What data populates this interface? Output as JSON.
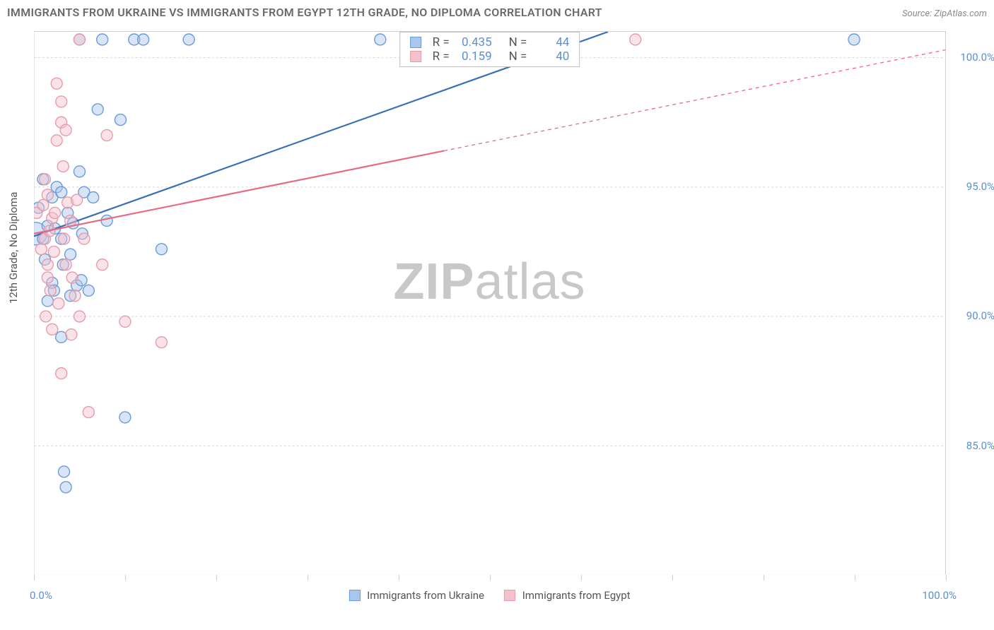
{
  "title": "IMMIGRANTS FROM UKRAINE VS IMMIGRANTS FROM EGYPT 12TH GRADE, NO DIPLOMA CORRELATION CHART",
  "source": "Source: ZipAtlas.com",
  "ylabel": "12th Grade, No Diploma",
  "watermark_bold": "ZIP",
  "watermark_light": "atlas",
  "chart": {
    "type": "scatter",
    "background_color": "#ffffff",
    "grid_color": "#d5d5d5",
    "axis_color": "#cfcfcf",
    "text_color": "#555555",
    "value_color": "#5b8fd6",
    "xlim": [
      0,
      100
    ],
    "ylim": [
      80,
      101
    ],
    "ytick_values": [
      85.0,
      90.0,
      95.0,
      100.0
    ],
    "ytick_labels": [
      "85.0%",
      "90.0%",
      "95.0%",
      "100.0%"
    ],
    "xtick_positions": [
      0,
      10,
      20,
      30,
      40,
      50,
      60,
      70,
      80,
      90,
      100
    ],
    "xtick_label_0": "0.0%",
    "xtick_label_100": "100.0%",
    "point_radius": 8,
    "point_opacity": 0.45,
    "line_width": 2.2,
    "series": [
      {
        "name": "Immigrants from Ukraine",
        "color_fill": "#a9c6ec",
        "color_stroke": "#6b9bd8",
        "line_color": "#3b6fb5",
        "R": "0.435",
        "N": "44",
        "trend_solid": {
          "x1": 0,
          "y1": 93.1,
          "x2": 63,
          "y2": 101
        },
        "points": [
          {
            "x": 0.2,
            "y": 93.2,
            "r": 16
          },
          {
            "x": 0.5,
            "y": 94.2
          },
          {
            "x": 1,
            "y": 93.0
          },
          {
            "x": 1,
            "y": 95.3
          },
          {
            "x": 1.2,
            "y": 92.2
          },
          {
            "x": 1.5,
            "y": 93.5
          },
          {
            "x": 1.5,
            "y": 90.6
          },
          {
            "x": 2,
            "y": 91.3
          },
          {
            "x": 2,
            "y": 94.6
          },
          {
            "x": 2.2,
            "y": 91.0
          },
          {
            "x": 2.3,
            "y": 93.4
          },
          {
            "x": 2.5,
            "y": 95.0
          },
          {
            "x": 3,
            "y": 94.8
          },
          {
            "x": 3,
            "y": 93.0
          },
          {
            "x": 3,
            "y": 89.2
          },
          {
            "x": 3.2,
            "y": 92.0
          },
          {
            "x": 3.3,
            "y": 84.0
          },
          {
            "x": 3.5,
            "y": 83.4
          },
          {
            "x": 3.7,
            "y": 94.0
          },
          {
            "x": 4,
            "y": 90.8
          },
          {
            "x": 4,
            "y": 92.4
          },
          {
            "x": 4.3,
            "y": 93.6
          },
          {
            "x": 4.7,
            "y": 91.2
          },
          {
            "x": 5,
            "y": 100.7
          },
          {
            "x": 5,
            "y": 95.6
          },
          {
            "x": 5.2,
            "y": 91.4
          },
          {
            "x": 5.3,
            "y": 93.2
          },
          {
            "x": 5.5,
            "y": 94.8
          },
          {
            "x": 6,
            "y": 91.0
          },
          {
            "x": 6.5,
            "y": 94.6
          },
          {
            "x": 7,
            "y": 98.0
          },
          {
            "x": 7.5,
            "y": 100.7
          },
          {
            "x": 8,
            "y": 93.7
          },
          {
            "x": 9.5,
            "y": 97.6
          },
          {
            "x": 10,
            "y": 86.1
          },
          {
            "x": 11,
            "y": 100.7
          },
          {
            "x": 12,
            "y": 100.7
          },
          {
            "x": 14,
            "y": 92.6
          },
          {
            "x": 17,
            "y": 100.7
          },
          {
            "x": 38,
            "y": 100.7
          },
          {
            "x": 48,
            "y": 100.7
          },
          {
            "x": 53,
            "y": 100.7
          },
          {
            "x": 58,
            "y": 100.7
          },
          {
            "x": 90,
            "y": 100.7
          }
        ]
      },
      {
        "name": "Immigrants from Egypt",
        "color_fill": "#f3c2cd",
        "color_stroke": "#e79cab",
        "line_color": "#e56b84",
        "R": "0.159",
        "N": "40",
        "trend_solid": {
          "x1": 0,
          "y1": 93.2,
          "x2": 45,
          "y2": 96.4
        },
        "trend_dash": {
          "x1": 45,
          "y1": 96.4,
          "x2": 100,
          "y2": 100.3
        },
        "points": [
          {
            "x": 0.3,
            "y": 94.0
          },
          {
            "x": 0.8,
            "y": 92.6
          },
          {
            "x": 1,
            "y": 94.3
          },
          {
            "x": 1.2,
            "y": 93.0
          },
          {
            "x": 1.2,
            "y": 95.3
          },
          {
            "x": 1.3,
            "y": 90.0
          },
          {
            "x": 1.5,
            "y": 92.0
          },
          {
            "x": 1.5,
            "y": 94.7
          },
          {
            "x": 1.5,
            "y": 91.5
          },
          {
            "x": 1.7,
            "y": 93.3
          },
          {
            "x": 1.8,
            "y": 91.0
          },
          {
            "x": 2,
            "y": 93.8
          },
          {
            "x": 2,
            "y": 89.5
          },
          {
            "x": 2.2,
            "y": 92.5
          },
          {
            "x": 2.3,
            "y": 94.0
          },
          {
            "x": 2.5,
            "y": 96.8
          },
          {
            "x": 2.5,
            "y": 99.0
          },
          {
            "x": 3,
            "y": 97.5
          },
          {
            "x": 3,
            "y": 87.8
          },
          {
            "x": 3,
            "y": 98.3
          },
          {
            "x": 3.3,
            "y": 93.0
          },
          {
            "x": 3.5,
            "y": 92.0
          },
          {
            "x": 3.5,
            "y": 97.2
          },
          {
            "x": 3.7,
            "y": 94.4
          },
          {
            "x": 4,
            "y": 93.7
          },
          {
            "x": 4.1,
            "y": 89.3
          },
          {
            "x": 4.2,
            "y": 91.5
          },
          {
            "x": 4.5,
            "y": 90.8
          },
          {
            "x": 4.7,
            "y": 94.5
          },
          {
            "x": 5,
            "y": 90.0
          },
          {
            "x": 5,
            "y": 100.7
          },
          {
            "x": 5.5,
            "y": 93.0
          },
          {
            "x": 6,
            "y": 86.3
          },
          {
            "x": 7.5,
            "y": 92.0
          },
          {
            "x": 8,
            "y": 97.0
          },
          {
            "x": 10,
            "y": 89.8
          },
          {
            "x": 14,
            "y": 89.0
          },
          {
            "x": 66,
            "y": 100.7
          },
          {
            "x": 3.2,
            "y": 95.8
          },
          {
            "x": 2.7,
            "y": 90.5
          }
        ]
      }
    ]
  }
}
